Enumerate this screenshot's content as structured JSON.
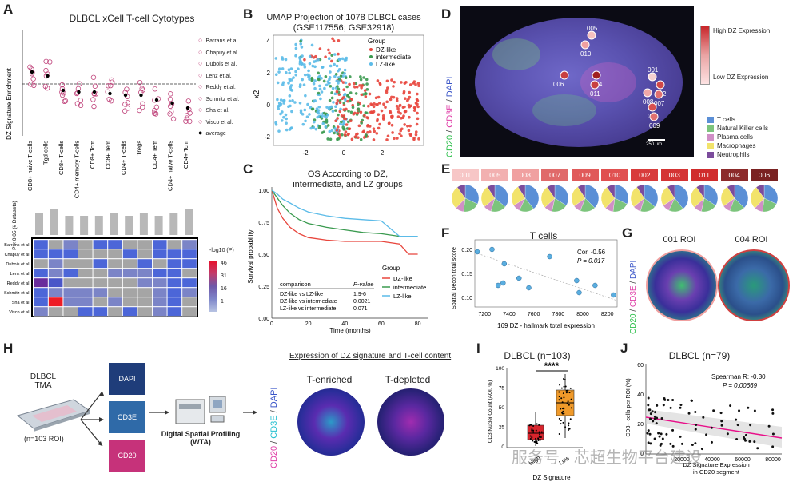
{
  "panels": {
    "A": {
      "label": "A",
      "title": "DLBCL xCell T-cell Cytotypes",
      "ylabel": "DZ Signature Enrichment",
      "categories": [
        "CD8+ naive T-cells",
        "Tgd cells",
        "CD8+ T-cells",
        "CD4+ memory T-cells",
        "CD8+ Tcm",
        "CD8+ Tem",
        "CD4+ T-cells",
        "Tregs",
        "CD4+ Tem",
        "CD4+ naive T-cells",
        "CD4+ Tcm"
      ],
      "legend": [
        "Barrans et al.",
        "Chapuy et al.",
        "Dubois et al.",
        "Lenz et al.",
        "Reddy et al.",
        "Schmitz et al.",
        "Sha et al.",
        "Visco et al.",
        "average"
      ],
      "bar_ylabel": "P < 0.05 (# Datasets)",
      "datasets": [
        "Barrans et al.",
        "Chapuy et al.",
        "Dubois et al.",
        "Lenz et al.",
        "Reddy et al.",
        "Schmitz et al.",
        "Sha et al.",
        "Visco et al."
      ],
      "colorbar_title": "-log10 (P)",
      "colorbar_ticks": [
        "46",
        "31",
        "16",
        "1"
      ]
    },
    "B": {
      "label": "B",
      "title": "UMAP Projection of 1078 DLBCL cases",
      "subtitle": "(GSE117556; GSE32918)",
      "ylabel": "x2",
      "xticks": [
        "-2",
        "0",
        "2"
      ],
      "yticks": [
        "4",
        "2",
        "0",
        "-2"
      ],
      "legend_title": "Group",
      "legend": [
        "DZ-like",
        "intermediate",
        "LZ-like"
      ]
    },
    "C": {
      "label": "C",
      "title": "OS According to DZ,",
      "title2": "intermediate, and LZ groups",
      "ylabel": "Survival probability",
      "xlabel": "Time (months)",
      "yticks": [
        "1.00",
        "0.75",
        "0.50",
        "0.25",
        "0.00"
      ],
      "xticks": [
        "0",
        "20",
        "40",
        "60",
        "80"
      ],
      "legend_title": "Group",
      "legend": [
        "DZ-like",
        "intermediate",
        "LZ-like"
      ],
      "table_header": [
        "comparison",
        "P-value"
      ],
      "table_rows": [
        [
          "DZ-like vs LZ-like",
          "1.9-6"
        ],
        [
          "DZ-like vs intermediate",
          "0.0021"
        ],
        [
          "LZ-like vs intermediate",
          "0.071"
        ]
      ]
    },
    "D": {
      "label": "D",
      "side_label_cd20": "CD20",
      "side_label_cd3e": "CD3E",
      "side_label_dapi": "DAPI",
      "high_label": "High DZ Expression",
      "low_label": "Low DZ Expression",
      "scale_bar": "250 µm",
      "rois": [
        "005",
        "010",
        "006",
        "004",
        "011",
        "001",
        "002",
        "008",
        "007",
        "003",
        "009"
      ],
      "cell_legend": [
        "T cells",
        "Natural Killer cells",
        "Plasma cells",
        "Macrophages",
        "Neutrophils"
      ],
      "cell_colors": [
        "#5b8fd6",
        "#7cc47c",
        "#d08fc6",
        "#f2e36b",
        "#7b4c9c"
      ]
    },
    "E": {
      "label": "E",
      "tiles": [
        "001",
        "005",
        "008",
        "007",
        "009",
        "010",
        "002",
        "003",
        "011",
        "004",
        "006"
      ]
    },
    "F": {
      "label": "F",
      "title": "T cells",
      "ylabel": "Spatial Decon total score",
      "xlabel": "169 DZ - hallmark total expression",
      "corr": "Cor. -0.56",
      "pval": "P = 0.017",
      "xticks": [
        "7200",
        "7400",
        "7600",
        "7800",
        "8000",
        "8200"
      ],
      "yticks": [
        "0.20",
        "0.15",
        "0.10"
      ]
    },
    "G": {
      "label": "G",
      "roi1": "001 ROI",
      "roi2": "004 ROI",
      "side_cd20": "CD20",
      "side_cd3e": "CD3E",
      "side_dapi": "DAPI"
    },
    "H": {
      "label": "H",
      "tma": "DLBCL",
      "tma2": "TMA",
      "roi_count": "(n=103 ROI)",
      "stains": [
        "DAPI",
        "CD3E",
        "CD20"
      ],
      "dsp": "Digital Spatial Profiling",
      "dsp2": "(WTA)",
      "expr_title": "Expression of DZ signature and T-cell content",
      "enriched": "T-enriched",
      "depleted": "T-depleted",
      "side_cd20": "CD20",
      "side_cd3e": "CD3E",
      "side_dapi": "DAPI"
    },
    "I": {
      "label": "I",
      "title": "DLBCL (n=103)",
      "ylabel": "CD3 Nuclei Count (AOI, %)",
      "xlabel": "DZ Signature",
      "groups": [
        "High",
        "Low"
      ],
      "sig": "****",
      "yticks": [
        "100",
        "75",
        "50",
        "25",
        "0"
      ]
    },
    "J": {
      "label": "J",
      "title": "DLBCL (n=79)",
      "ylabel": "CD3+ cells per ROI (%)",
      "xlabel": "DZ Signature Expression",
      "xlabel2": "in CD20 segment",
      "spearman": "Spearman R: -0.30",
      "pval": "P = 0.00669",
      "xticks": [
        "20000",
        "40000",
        "60000",
        "80000"
      ],
      "yticks": [
        "60",
        "40",
        "20",
        "0"
      ]
    }
  },
  "watermark": "服务号 · 芯超生物平台建设",
  "chart_data": [
    {
      "type": "line",
      "panel": "C",
      "title": "OS According to DZ, intermediate, and LZ groups",
      "xlabel": "Time (months)",
      "ylabel": "Survival probability",
      "xlim": [
        0,
        85
      ],
      "ylim": [
        0,
        1
      ],
      "series": [
        {
          "name": "DZ-like",
          "color": "#e8453c",
          "x": [
            0,
            3,
            6,
            10,
            15,
            20,
            30,
            40,
            50,
            60,
            70,
            75,
            80
          ],
          "y": [
            1.0,
            0.86,
            0.78,
            0.71,
            0.66,
            0.63,
            0.61,
            0.6,
            0.6,
            0.6,
            0.58,
            0.5,
            0.5
          ]
        },
        {
          "name": "intermediate",
          "color": "#3a9a4f",
          "x": [
            0,
            3,
            6,
            10,
            15,
            20,
            30,
            40,
            50,
            60,
            70,
            80
          ],
          "y": [
            1.0,
            0.94,
            0.88,
            0.82,
            0.77,
            0.74,
            0.71,
            0.69,
            0.67,
            0.66,
            0.64,
            0.64
          ]
        },
        {
          "name": "LZ-like",
          "color": "#5bbbe8",
          "x": [
            0,
            3,
            6,
            10,
            15,
            20,
            30,
            40,
            50,
            60,
            65,
            70,
            80
          ],
          "y": [
            1.0,
            0.97,
            0.93,
            0.9,
            0.86,
            0.83,
            0.8,
            0.78,
            0.77,
            0.76,
            0.7,
            0.64,
            0.64
          ]
        }
      ]
    },
    {
      "type": "scatter",
      "panel": "F",
      "title": "T cells",
      "xlabel": "169 DZ - hallmark total expression",
      "ylabel": "Spatial Decon total score",
      "xlim": [
        7120,
        8280
      ],
      "ylim": [
        0.08,
        0.22
      ],
      "x": [
        7140,
        7260,
        7360,
        7310,
        7350,
        7480,
        7560,
        7730,
        7950,
        7970,
        8100,
        8250
      ],
      "y": [
        0.195,
        0.2,
        0.17,
        0.125,
        0.13,
        0.14,
        0.12,
        0.185,
        0.135,
        0.11,
        0.125,
        0.105
      ]
    },
    {
      "type": "bar",
      "panel": "A",
      "title": "P < 0.05 (# Datasets)",
      "categories": [
        "CD8+ naive T-cells",
        "Tgd cells",
        "CD8+ T-cells",
        "CD4+ memory T-cells",
        "CD8+ Tcm",
        "CD8+ Tem",
        "CD4+ T-cells",
        "Tregs",
        "CD4+ Tem",
        "CD4+ naive T-cells",
        "CD4+ Tcm"
      ],
      "values": [
        7,
        8,
        6,
        6,
        6,
        7,
        6,
        7,
        6,
        7,
        8
      ],
      "ylim": [
        0,
        8
      ]
    }
  ]
}
